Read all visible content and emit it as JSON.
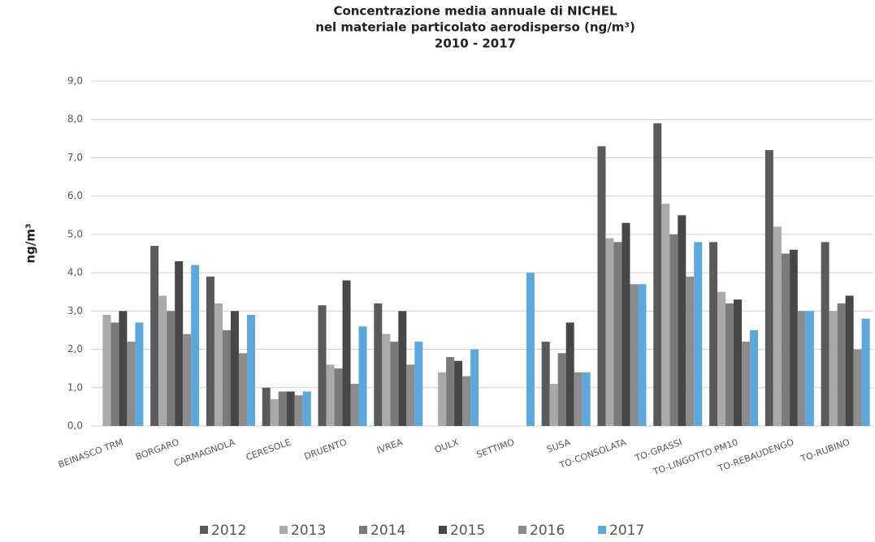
{
  "chart_data": {
    "type": "bar",
    "title": "Concentrazione media annuale di NICHEL",
    "subtitle": "nel materiale particolato aerodisperso (ng/m³)",
    "period": "2010 - 2017",
    "y_label": "ng/m³",
    "categories": [
      "BEINASCO TRM",
      "BORGARO",
      "CARMAGNOLA",
      "CERESOLE",
      "DRUENTO",
      "IVREA",
      "OULX",
      "SETTIMO",
      "SUSA",
      "TO-CONSOLATA",
      "TO-GRASSI",
      "TO-LINGOTTO  PM10",
      "TO-REBAUDENGO",
      "TO-RUBINO"
    ],
    "series": [
      {
        "name": "2012",
        "color": "#5a5a5a",
        "values": [
          null,
          4.7,
          3.9,
          1.0,
          3.15,
          3.2,
          null,
          null,
          2.2,
          7.3,
          7.9,
          4.8,
          7.2,
          4.8
        ]
      },
      {
        "name": "2013",
        "color": "#a9a9a9",
        "values": [
          2.9,
          3.4,
          3.2,
          0.7,
          1.6,
          2.4,
          1.4,
          null,
          1.1,
          4.9,
          5.8,
          3.5,
          5.2,
          3.0
        ]
      },
      {
        "name": "2014",
        "color": "#7a7a7a",
        "values": [
          2.7,
          3.0,
          2.5,
          0.9,
          1.5,
          2.2,
          1.8,
          null,
          1.9,
          4.8,
          5.0,
          3.2,
          4.5,
          3.2
        ]
      },
      {
        "name": "2015",
        "color": "#474747",
        "values": [
          3.0,
          4.3,
          3.0,
          0.9,
          3.8,
          3.0,
          1.7,
          null,
          2.7,
          5.3,
          5.5,
          3.3,
          4.6,
          3.4
        ]
      },
      {
        "name": "2016",
        "color": "#8c8c8c",
        "values": [
          2.2,
          2.4,
          1.9,
          0.8,
          1.1,
          1.6,
          1.3,
          null,
          1.4,
          3.7,
          3.9,
          2.2,
          3.0,
          2.0
        ]
      },
      {
        "name": "2017",
        "color": "#5aa8de",
        "values": [
          2.7,
          4.2,
          2.9,
          0.9,
          2.6,
          2.2,
          2.0,
          4.0,
          1.4,
          3.7,
          4.8,
          2.5,
          3.0,
          2.8
        ]
      }
    ],
    "ylim": [
      0,
      9
    ],
    "yticks": [
      {
        "value": 0,
        "label": "0,0"
      },
      {
        "value": 1,
        "label": "1,0"
      },
      {
        "value": 2,
        "label": "2,0"
      },
      {
        "value": 3,
        "label": "3,0"
      },
      {
        "value": 4,
        "label": "4,0"
      },
      {
        "value": 5,
        "label": "5,0"
      },
      {
        "value": 6,
        "label": "6,0"
      },
      {
        "value": 7,
        "label": "7,0"
      },
      {
        "value": 8,
        "label": "8,0"
      },
      {
        "value": 9,
        "label": "9,0"
      }
    ],
    "grid": true,
    "legend": "bottom"
  }
}
